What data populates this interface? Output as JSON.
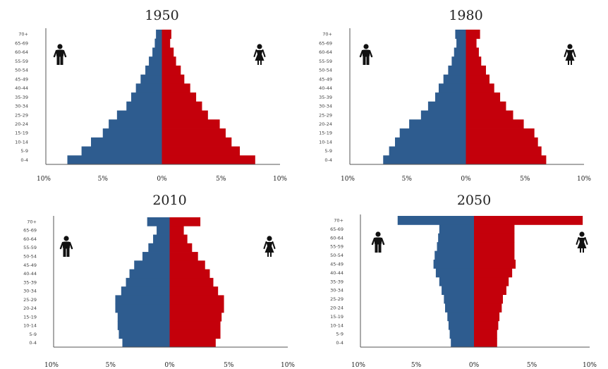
{
  "chart_data": [
    {
      "type": "bar",
      "title": "1950",
      "categories": [
        "0-4",
        "5-9",
        "10-14",
        "15-19",
        "20-24",
        "25-29",
        "30-34",
        "35-39",
        "40-44",
        "45-49",
        "50-54",
        "55-59",
        "60-64",
        "65-69",
        "70+"
      ],
      "series": [
        {
          "values": [
            -8.0,
            -6.8,
            -6.0,
            -5.0,
            -4.5,
            -3.8,
            -3.0,
            -2.6,
            -2.2,
            -1.8,
            -1.4,
            -1.1,
            -0.8,
            -0.6,
            -0.5
          ]
        },
        {
          "values": [
            7.9,
            6.6,
            5.9,
            5.4,
            4.9,
            3.9,
            3.4,
            2.9,
            2.4,
            1.9,
            1.6,
            1.2,
            1.0,
            0.7,
            0.8
          ]
        }
      ],
      "colors": [
        "#2e5c8f",
        "#c4000b"
      ],
      "xlim": [
        -10,
        10
      ],
      "ticks": [
        "10%",
        "5%",
        "0%",
        "5%",
        "10%"
      ],
      "icons": [
        "male-icon",
        "female-icon"
      ]
    },
    {
      "type": "bar",
      "title": "1980",
      "categories": [
        "0-4",
        "5-9",
        "10-14",
        "15-19",
        "20-24",
        "25-29",
        "30-34",
        "35-39",
        "40-44",
        "45-49",
        "50-54",
        "55-59",
        "60-64",
        "65-69",
        "70+"
      ],
      "series": [
        {
          "values": [
            -7.0,
            -6.5,
            -6.0,
            -5.6,
            -4.8,
            -3.8,
            -3.2,
            -2.6,
            -2.3,
            -1.9,
            -1.5,
            -1.2,
            -1.0,
            -0.8,
            -0.9
          ]
        },
        {
          "values": [
            6.8,
            6.4,
            6.1,
            5.8,
            4.9,
            4.0,
            3.4,
            2.9,
            2.4,
            2.0,
            1.7,
            1.3,
            1.1,
            0.9,
            1.2
          ]
        }
      ],
      "colors": [
        "#2e5c8f",
        "#c4000b"
      ],
      "xlim": [
        -10,
        10
      ],
      "ticks": [
        "10%",
        "5%",
        "0%",
        "5%",
        "10%"
      ],
      "icons": [
        "male-icon",
        "female-icon"
      ]
    },
    {
      "type": "bar",
      "title": "2010",
      "categories": [
        "0-4",
        "5-9",
        "10-14",
        "15-19",
        "20-24",
        "25-29",
        "30-34",
        "35-39",
        "40-44",
        "45-49",
        "50-54",
        "55-59",
        "60-64",
        "65-69",
        "70+"
      ],
      "series": [
        {
          "values": [
            -4.0,
            -4.3,
            -4.4,
            -4.4,
            -4.6,
            -4.6,
            -4.1,
            -3.7,
            -3.4,
            -3.0,
            -2.3,
            -1.8,
            -1.4,
            -1.1,
            -1.9
          ]
        },
        {
          "values": [
            3.9,
            4.3,
            4.3,
            4.4,
            4.6,
            4.6,
            4.1,
            3.7,
            3.4,
            3.0,
            2.4,
            1.9,
            1.5,
            1.2,
            2.6
          ]
        }
      ],
      "colors": [
        "#2e5c8f",
        "#c4000b"
      ],
      "xlim": [
        -10,
        10
      ],
      "ticks": [
        "10%",
        "5%",
        "0%",
        "5%",
        "10%"
      ],
      "icons": [
        "male-icon",
        "female-icon"
      ]
    },
    {
      "type": "bar",
      "title": "2050",
      "categories": [
        "0-4",
        "5-9",
        "10-14",
        "15-19",
        "20-24",
        "25-29",
        "30-34",
        "35-39",
        "40-44",
        "45-49",
        "50-54",
        "55-59",
        "60-64",
        "65-69",
        "70+"
      ],
      "series": [
        {
          "values": [
            -2.0,
            -2.1,
            -2.2,
            -2.3,
            -2.5,
            -2.6,
            -2.8,
            -3.0,
            -3.3,
            -3.5,
            -3.4,
            -3.2,
            -3.1,
            -3.0,
            -6.6
          ]
        },
        {
          "values": [
            2.0,
            2.0,
            2.1,
            2.2,
            2.4,
            2.5,
            2.8,
            3.0,
            3.3,
            3.6,
            3.5,
            3.5,
            3.5,
            3.5,
            9.4
          ]
        }
      ],
      "colors": [
        "#2e5c8f",
        "#c4000b"
      ],
      "xlim": [
        -10,
        10
      ],
      "ticks": [
        "10%",
        "5%",
        "0%",
        "5%",
        "10%"
      ],
      "icons": [
        "male-icon",
        "female-icon"
      ]
    }
  ]
}
